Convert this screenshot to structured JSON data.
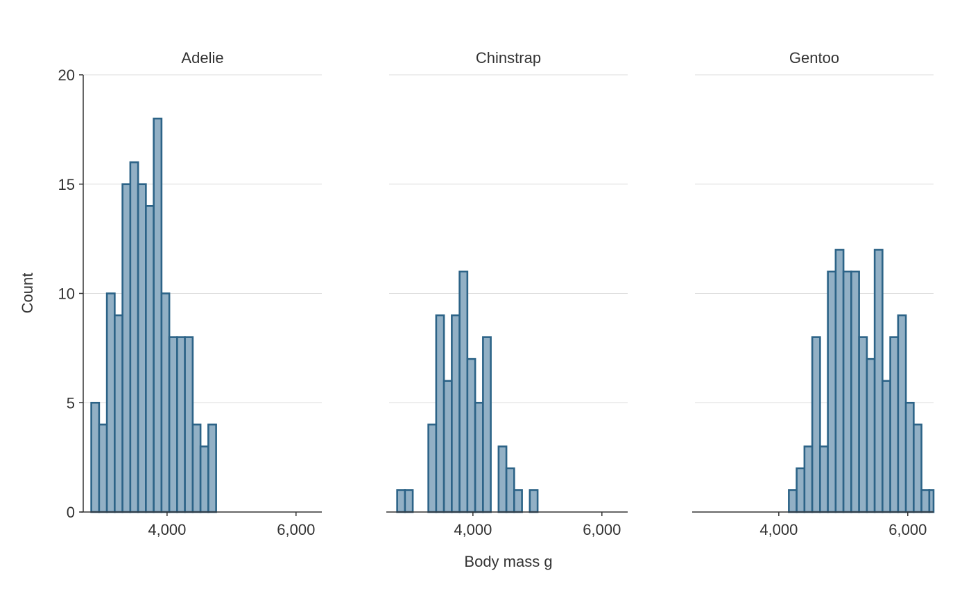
{
  "chart_data": {
    "type": "bar",
    "subtype": "histogram-facets",
    "xlabel": "Body mass g",
    "ylabel": "Count",
    "ylim": [
      0,
      20
    ],
    "xlim": [
      2700,
      6400
    ],
    "y_ticks": [
      0,
      5,
      10,
      15,
      20
    ],
    "x_ticks": [
      4000,
      6000
    ],
    "x_tick_labels": [
      "4,000",
      "6,000"
    ],
    "y_tick_labels": [
      "0",
      "5",
      "10",
      "15",
      "20"
    ],
    "grid": "horizontal",
    "bin_start": 2825,
    "bin_width": 121,
    "colors": {
      "bar_fill": "#92b0c5",
      "bar_edge": "#2c6387",
      "grid": "#dcdcdc",
      "text": "#333333"
    },
    "facets": [
      {
        "name": "Adelie",
        "values": [
          5,
          4,
          10,
          9,
          15,
          16,
          15,
          14,
          18,
          10,
          8,
          8,
          8,
          4,
          3,
          4,
          0,
          0,
          0,
          0,
          0,
          0,
          0,
          0,
          0,
          0,
          0,
          0,
          0,
          0
        ]
      },
      {
        "name": "Chinstrap",
        "values": [
          1,
          1,
          0,
          0,
          4,
          9,
          6,
          9,
          11,
          7,
          5,
          8,
          0,
          3,
          2,
          1,
          0,
          1,
          0,
          0,
          0,
          0,
          0,
          0,
          0,
          0,
          0,
          0,
          0,
          0
        ]
      },
      {
        "name": "Gentoo",
        "values": [
          0,
          0,
          0,
          0,
          0,
          0,
          0,
          0,
          0,
          0,
          0,
          1,
          2,
          3,
          8,
          3,
          11,
          12,
          11,
          11,
          8,
          7,
          12,
          6,
          8,
          9,
          5,
          4,
          1,
          1
        ]
      }
    ]
  }
}
